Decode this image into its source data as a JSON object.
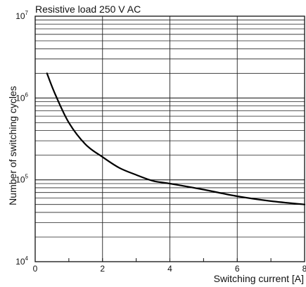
{
  "chart_data": {
    "type": "line",
    "title": "Resistive load 250 V AC",
    "xlabel": "Switching current [A]",
    "ylabel": "Number of switching cycles",
    "xlim": [
      0,
      8
    ],
    "ylim": [
      10000,
      10000000
    ],
    "yscale": "log",
    "grid": true,
    "x_ticks": [
      "0",
      "2",
      "4",
      "6",
      "8"
    ],
    "y_ticks": [
      {
        "base": "10",
        "exp": "4"
      },
      {
        "base": "10",
        "exp": "5"
      },
      {
        "base": "10",
        "exp": "6"
      },
      {
        "base": "10",
        "exp": "7"
      }
    ],
    "series": [
      {
        "x": [
          0.35,
          0.6,
          1.0,
          1.5,
          2.0,
          2.5,
          3.0,
          3.5,
          4.0,
          5.0,
          6.0,
          7.0,
          8.0
        ],
        "y": [
          2000000,
          1100000,
          500000,
          270000,
          190000,
          140000,
          115000,
          97000,
          90000,
          76000,
          63000,
          55000,
          50000
        ]
      }
    ]
  }
}
